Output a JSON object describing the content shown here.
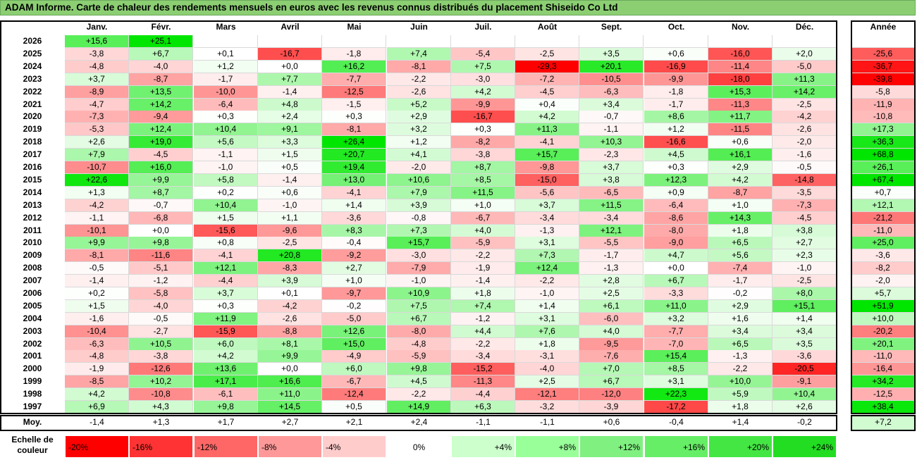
{
  "title": "ADAM Informe. Carte de chaleur des rendements mensuels en euros avec les revenus connus distribués du placement Shiseido Co Ltd",
  "year_header": "Année",
  "average_label": "Moy.",
  "legend_label": "Echelle de couleur",
  "chart_data": {
    "type": "heatmap",
    "title": "ADAM Informe. Carte de chaleur des rendements mensuels en euros avec les revenus connus distribués du placement Shiseido Co Ltd",
    "months": [
      "Janv.",
      "Févr.",
      "Mars",
      "Avril",
      "Mai",
      "Juin",
      "Juil.",
      "Août",
      "Sept.",
      "Oct.",
      "Nov.",
      "Déc."
    ],
    "rows": [
      {
        "year": "2026",
        "values": [
          "+15,6",
          "+25,1",
          "",
          "",
          "",
          "",
          "",
          "",
          "",
          "",
          "",
          ""
        ],
        "annual": ""
      },
      {
        "year": "2025",
        "values": [
          "-3,8",
          "+6,7",
          "+0,1",
          "-16,7",
          "-1,8",
          "+7,4",
          "-5,4",
          "-2,5",
          "+3,5",
          "+0,6",
          "-16,0",
          "+2,0"
        ],
        "annual": "-25,6"
      },
      {
        "year": "2024",
        "values": [
          "-4,8",
          "-4,0",
          "+1,2",
          "+0,0",
          "+16,2",
          "-8,1",
          "+7,5",
          "-29,3",
          "+20,1",
          "-16,9",
          "-11,4",
          "-5,0"
        ],
        "annual": "-36,7"
      },
      {
        "year": "2023",
        "values": [
          "+3,7",
          "-8,7",
          "-1,7",
          "+7,7",
          "-7,7",
          "-2,2",
          "-3,0",
          "-7,2",
          "-10,5",
          "-9,9",
          "-18,0",
          "+11,3"
        ],
        "annual": "-39,8"
      },
      {
        "year": "2022",
        "values": [
          "-8,9",
          "+13,5",
          "-10,0",
          "-1,4",
          "-12,5",
          "-2,6",
          "+4,2",
          "-4,5",
          "-6,3",
          "-1,8",
          "+15,3",
          "+14,2"
        ],
        "annual": "-5,8"
      },
      {
        "year": "2021",
        "values": [
          "-4,7",
          "+14,2",
          "-6,4",
          "+4,8",
          "-1,5",
          "+5,2",
          "-9,9",
          "+0,4",
          "+3,4",
          "-1,7",
          "-11,3",
          "-2,5"
        ],
        "annual": "-11,9"
      },
      {
        "year": "2020",
        "values": [
          "-7,3",
          "-9,4",
          "+0,3",
          "+2,4",
          "+0,3",
          "+2,9",
          "-16,7",
          "+4,2",
          "-0,7",
          "+8,6",
          "+11,7",
          "-4,2"
        ],
        "annual": "-10,8"
      },
      {
        "year": "2019",
        "values": [
          "-5,3",
          "+12,4",
          "+10,4",
          "+9,1",
          "-8,1",
          "+3,2",
          "+0,3",
          "+11,3",
          "-1,1",
          "+1,2",
          "-11,5",
          "-2,6"
        ],
        "annual": "+17,3"
      },
      {
        "year": "2018",
        "values": [
          "+2,6",
          "+19,0",
          "+5,6",
          "+3,3",
          "+26,4",
          "+1,2",
          "-8,2",
          "-4,1",
          "+10,3",
          "-16,6",
          "+0,6",
          "-2,0"
        ],
        "annual": "+36,3"
      },
      {
        "year": "2017",
        "values": [
          "+7,9",
          "-4,5",
          "-1,1",
          "+1,5",
          "+20,7",
          "+4,1",
          "-3,8",
          "+15,7",
          "-2,3",
          "+4,5",
          "+16,1",
          "-1,6"
        ],
        "annual": "+68,8"
      },
      {
        "year": "2016",
        "values": [
          "-10,7",
          "+16,0",
          "-1,0",
          "+0,5",
          "+19,4",
          "-2,0",
          "+8,7",
          "-9,8",
          "+3,7",
          "+0,3",
          "+2,9",
          "-0,5"
        ],
        "annual": "+26,1"
      },
      {
        "year": "2015",
        "values": [
          "+22,6",
          "+9,9",
          "+5,8",
          "-1,4",
          "+13,0",
          "+10,6",
          "+8,5",
          "-15,0",
          "+3,8",
          "+12,3",
          "+4,2",
          "-14,8"
        ],
        "annual": "+67,4"
      },
      {
        "year": "2014",
        "values": [
          "+1,3",
          "+8,7",
          "+0,2",
          "+0,6",
          "-4,1",
          "+7,9",
          "+11,5",
          "-5,6",
          "-6,5",
          "+0,9",
          "-8,7",
          "-3,5"
        ],
        "annual": "+0,7"
      },
      {
        "year": "2013",
        "values": [
          "-4,2",
          "-0,7",
          "+10,4",
          "-1,0",
          "+1,4",
          "+3,9",
          "+1,0",
          "+3,7",
          "+11,5",
          "-6,4",
          "+1,0",
          "-7,3"
        ],
        "annual": "+12,1"
      },
      {
        "year": "2012",
        "values": [
          "-1,1",
          "-6,8",
          "+1,5",
          "+1,1",
          "-3,6",
          "-0,8",
          "-6,7",
          "-3,4",
          "-3,4",
          "-8,6",
          "+14,3",
          "-4,5"
        ],
        "annual": "-21,2"
      },
      {
        "year": "2011",
        "values": [
          "-10,1",
          "+0,0",
          "-15,6",
          "-9,6",
          "+8,3",
          "+7,3",
          "+4,0",
          "-1,3",
          "+12,1",
          "-8,0",
          "+1,8",
          "+3,8"
        ],
        "annual": "-11,0"
      },
      {
        "year": "2010",
        "values": [
          "+9,9",
          "+9,8",
          "+0,8",
          "-2,5",
          "-0,4",
          "+15,7",
          "-5,9",
          "+3,1",
          "-5,5",
          "-9,0",
          "+6,5",
          "+2,7"
        ],
        "annual": "+25,0"
      },
      {
        "year": "2009",
        "values": [
          "-8,1",
          "-11,6",
          "-4,1",
          "+20,8",
          "-9,2",
          "-3,0",
          "-2,2",
          "+7,3",
          "-1,7",
          "+4,7",
          "+5,6",
          "+2,3"
        ],
        "annual": "-3,6"
      },
      {
        "year": "2008",
        "values": [
          "-0,5",
          "-5,1",
          "+12,1",
          "-8,3",
          "+2,7",
          "-7,9",
          "-1,9",
          "+12,4",
          "-1,3",
          "+0,0",
          "-7,4",
          "-1,0"
        ],
        "annual": "-8,2"
      },
      {
        "year": "2007",
        "values": [
          "-1,4",
          "-1,2",
          "-4,4",
          "+3,9",
          "+1,0",
          "-1,0",
          "-1,4",
          "-2,2",
          "+2,8",
          "+6,7",
          "-1,7",
          "-2,5"
        ],
        "annual": "-2,0"
      },
      {
        "year": "2006",
        "values": [
          "+0,2",
          "-5,8",
          "+3,7",
          "+0,1",
          "-9,7",
          "+10,9",
          "+1,8",
          "-1,0",
          "+2,5",
          "-3,3",
          "-0,2",
          "+8,0"
        ],
        "annual": "+5,7"
      },
      {
        "year": "2005",
        "values": [
          "+1,5",
          "-4,0",
          "+0,3",
          "-4,2",
          "-0,2",
          "+7,5",
          "+7,4",
          "+1,4",
          "+6,1",
          "+11,0",
          "+2,9",
          "+15,1"
        ],
        "annual": "+51,9"
      },
      {
        "year": "2004",
        "values": [
          "-1,6",
          "-0,5",
          "+11,9",
          "-2,6",
          "-5,0",
          "+6,7",
          "-1,2",
          "+3,1",
          "-6,0",
          "+3,2",
          "+1,6",
          "+1,4"
        ],
        "annual": "+10,0"
      },
      {
        "year": "2003",
        "values": [
          "-10,4",
          "-2,7",
          "-15,9",
          "-8,8",
          "+12,6",
          "-8,0",
          "+4,4",
          "+7,6",
          "+4,0",
          "-7,7",
          "+3,4",
          "+3,4"
        ],
        "annual": "-20,2"
      },
      {
        "year": "2002",
        "values": [
          "-6,3",
          "+10,5",
          "+6,0",
          "+8,1",
          "+15,0",
          "-4,8",
          "-2,2",
          "+1,8",
          "-9,5",
          "-7,0",
          "+6,5",
          "+3,5"
        ],
        "annual": "+20,1"
      },
      {
        "year": "2001",
        "values": [
          "-4,8",
          "-3,8",
          "+4,2",
          "+9,9",
          "-4,9",
          "-5,9",
          "-3,4",
          "-3,1",
          "-7,6",
          "+15,4",
          "-1,3",
          "-3,6"
        ],
        "annual": "-11,0"
      },
      {
        "year": "2000",
        "values": [
          "-1,9",
          "-12,6",
          "+13,6",
          "+0,0",
          "+6,0",
          "+9,8",
          "-15,2",
          "-4,0",
          "+7,0",
          "+8,5",
          "-2,2",
          "-20,5"
        ],
        "annual": "-16,4"
      },
      {
        "year": "1999",
        "values": [
          "-8,5",
          "+10,2",
          "+17,1",
          "+16,6",
          "-6,7",
          "+4,5",
          "-11,3",
          "+2,5",
          "+6,7",
          "+3,1",
          "+10,0",
          "-9,1"
        ],
        "annual": "+34,2"
      },
      {
        "year": "1998",
        "values": [
          "+4,2",
          "-10,8",
          "-6,1",
          "+11,0",
          "-12,4",
          "-2,2",
          "-4,4",
          "-12,1",
          "-12,0",
          "+22,3",
          "+5,9",
          "+10,4"
        ],
        "annual": "-12,5"
      },
      {
        "year": "1997",
        "values": [
          "+6,9",
          "+4,3",
          "+9,8",
          "+14,5",
          "+0,5",
          "+14,9",
          "+6,3",
          "-3,2",
          "-3,9",
          "-17,2",
          "+1,8",
          "+2,6"
        ],
        "annual": "+38,4"
      }
    ],
    "averages": [
      "-1,4",
      "+1,3",
      "+1,7",
      "+2,7",
      "+2,1",
      "+2,4",
      "-1,1",
      "-1,1",
      "+0,6",
      "-0,4",
      "+1,4",
      "-0,2"
    ],
    "average_annual": "+7,2",
    "color_scale": [
      {
        "label": "-20%",
        "value": -20,
        "color": "#ff0000"
      },
      {
        "label": "-16%",
        "value": -16,
        "color": "#ff3333"
      },
      {
        "label": "-12%",
        "value": -12,
        "color": "#ff6666"
      },
      {
        "label": "-8%",
        "value": -8,
        "color": "#ff9999"
      },
      {
        "label": "-4%",
        "value": -4,
        "color": "#ffcccc"
      },
      {
        "label": "0%",
        "value": 0,
        "color": "#ffffff"
      },
      {
        "label": "+4%",
        "value": 4,
        "color": "#ccffcc"
      },
      {
        "label": "+8%",
        "value": 8,
        "color": "#99ff99"
      },
      {
        "label": "+12%",
        "value": 12,
        "color": "#80f080"
      },
      {
        "label": "+16%",
        "value": 16,
        "color": "#66ee66"
      },
      {
        "label": "+20%",
        "value": 20,
        "color": "#44e644"
      },
      {
        "label": "+24%",
        "value": 24,
        "color": "#22dd22"
      }
    ]
  }
}
